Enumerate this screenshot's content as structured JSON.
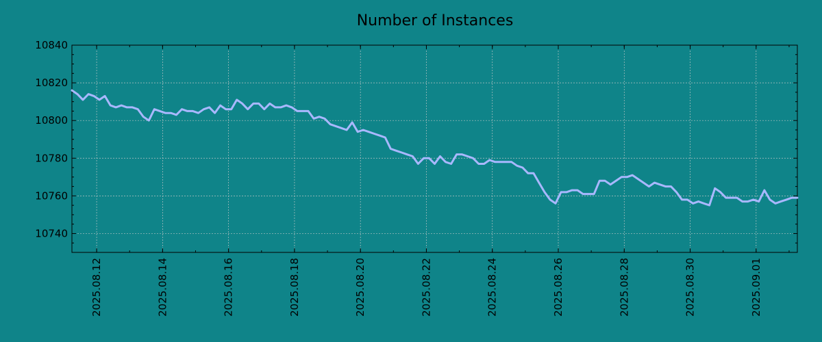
{
  "background_color": "#0f8489",
  "chart_data": {
    "type": "line",
    "title": "Number of Instances",
    "xlabel": "",
    "ylabel": "",
    "ylim": [
      10730,
      10840
    ],
    "xlim": [
      "2025-08-11 06:00",
      "2025-09-02 06:00"
    ],
    "y_ticks": [
      10740,
      10760,
      10780,
      10800,
      10820,
      10840
    ],
    "x_ticks": [
      "2025.08.12",
      "2025.08.14",
      "2025.08.16",
      "2025.08.18",
      "2025.08.20",
      "2025.08.22",
      "2025.08.24",
      "2025.08.26",
      "2025.08.28",
      "2025.08.30",
      "2025.09.01"
    ],
    "x_tick_dates": [
      "2025-08-12",
      "2025-08-14",
      "2025-08-16",
      "2025-08-18",
      "2025-08-20",
      "2025-08-22",
      "2025-08-24",
      "2025-08-26",
      "2025-08-28",
      "2025-08-30",
      "2025-09-01"
    ],
    "grid": true,
    "line_color": "#a9b8ff",
    "series": [
      {
        "x": [
          "2025-08-11 06:00",
          "2025-08-11 10:00",
          "2025-08-11 14:00",
          "2025-08-11 18:00",
          "2025-08-11 22:00",
          "2025-08-12 02:00",
          "2025-08-12 06:00",
          "2025-08-12 10:00",
          "2025-08-12 14:00",
          "2025-08-12 18:00",
          "2025-08-12 22:00",
          "2025-08-13 02:00",
          "2025-08-13 06:00",
          "2025-08-13 10:00",
          "2025-08-13 14:00",
          "2025-08-13 18:00",
          "2025-08-13 22:00",
          "2025-08-14 02:00",
          "2025-08-14 06:00",
          "2025-08-14 10:00",
          "2025-08-14 14:00",
          "2025-08-14 18:00",
          "2025-08-14 22:00",
          "2025-08-15 02:00",
          "2025-08-15 06:00",
          "2025-08-15 10:00",
          "2025-08-15 14:00",
          "2025-08-15 18:00",
          "2025-08-15 22:00",
          "2025-08-16 02:00",
          "2025-08-16 06:00",
          "2025-08-16 10:00",
          "2025-08-16 14:00",
          "2025-08-16 18:00",
          "2025-08-16 22:00",
          "2025-08-17 02:00",
          "2025-08-17 06:00",
          "2025-08-17 10:00",
          "2025-08-17 14:00",
          "2025-08-17 18:00",
          "2025-08-17 22:00",
          "2025-08-18 02:00",
          "2025-08-18 06:00",
          "2025-08-18 10:00",
          "2025-08-18 14:00",
          "2025-08-18 18:00",
          "2025-08-18 22:00",
          "2025-08-19 02:00",
          "2025-08-19 06:00",
          "2025-08-19 10:00",
          "2025-08-19 14:00",
          "2025-08-19 18:00",
          "2025-08-19 22:00",
          "2025-08-20 02:00",
          "2025-08-20 06:00",
          "2025-08-20 10:00",
          "2025-08-20 14:00",
          "2025-08-20 18:00",
          "2025-08-20 22:00",
          "2025-08-21 02:00",
          "2025-08-21 06:00",
          "2025-08-21 10:00",
          "2025-08-21 14:00",
          "2025-08-21 18:00",
          "2025-08-21 22:00",
          "2025-08-22 02:00",
          "2025-08-22 06:00",
          "2025-08-22 10:00",
          "2025-08-22 14:00",
          "2025-08-22 18:00",
          "2025-08-22 22:00",
          "2025-08-23 02:00",
          "2025-08-23 06:00",
          "2025-08-23 10:00",
          "2025-08-23 14:00",
          "2025-08-23 18:00",
          "2025-08-23 22:00",
          "2025-08-24 02:00",
          "2025-08-24 06:00",
          "2025-08-24 10:00",
          "2025-08-24 14:00",
          "2025-08-24 18:00",
          "2025-08-24 22:00",
          "2025-08-25 02:00",
          "2025-08-25 06:00",
          "2025-08-25 10:00",
          "2025-08-25 14:00",
          "2025-08-25 18:00",
          "2025-08-25 22:00",
          "2025-08-26 02:00",
          "2025-08-26 06:00",
          "2025-08-26 10:00",
          "2025-08-26 14:00",
          "2025-08-26 18:00",
          "2025-08-26 22:00",
          "2025-08-27 02:00",
          "2025-08-27 06:00",
          "2025-08-27 10:00",
          "2025-08-27 14:00",
          "2025-08-27 18:00",
          "2025-08-27 22:00",
          "2025-08-28 02:00",
          "2025-08-28 06:00",
          "2025-08-28 10:00",
          "2025-08-28 14:00",
          "2025-08-28 18:00",
          "2025-08-28 22:00",
          "2025-08-29 02:00",
          "2025-08-29 06:00",
          "2025-08-29 10:00",
          "2025-08-29 14:00",
          "2025-08-29 18:00",
          "2025-08-29 22:00",
          "2025-08-30 02:00",
          "2025-08-30 06:00",
          "2025-08-30 10:00",
          "2025-08-30 14:00",
          "2025-08-30 18:00",
          "2025-08-30 22:00",
          "2025-08-31 02:00",
          "2025-08-31 06:00",
          "2025-08-31 10:00",
          "2025-08-31 14:00",
          "2025-08-31 18:00",
          "2025-08-31 22:00",
          "2025-09-01 02:00",
          "2025-09-01 06:00",
          "2025-09-01 10:00",
          "2025-09-01 14:00",
          "2025-09-01 18:00",
          "2025-09-01 22:00",
          "2025-09-02 02:00",
          "2025-09-02 06:00"
        ],
        "values": [
          10816,
          10814,
          10811,
          10814,
          10813,
          10811,
          10813,
          10808,
          10807,
          10808,
          10807,
          10807,
          10806,
          10802,
          10800,
          10806,
          10805,
          10804,
          10804,
          10803,
          10806,
          10805,
          10805,
          10804,
          10806,
          10807,
          10804,
          10808,
          10806,
          10806,
          10811,
          10809,
          10806,
          10809,
          10809,
          10806,
          10809,
          10807,
          10807,
          10808,
          10807,
          10805,
          10805,
          10805,
          10801,
          10802,
          10801,
          10798,
          10797,
          10796,
          10795,
          10799,
          10794,
          10795,
          10794,
          10793,
          10792,
          10791,
          10785,
          10784,
          10783,
          10782,
          10781,
          10777,
          10780,
          10780,
          10777,
          10781,
          10778,
          10777,
          10782,
          10782,
          10781,
          10780,
          10777,
          10777,
          10779,
          10778,
          10778,
          10778,
          10778,
          10776,
          10775,
          10772,
          10772,
          10767,
          10762,
          10758,
          10756,
          10762,
          10762,
          10763,
          10763,
          10761,
          10761,
          10761,
          10768,
          10768,
          10766,
          10768,
          10770,
          10770,
          10771,
          10769,
          10767,
          10765,
          10767,
          10766,
          10765,
          10765,
          10762,
          10758,
          10758,
          10756,
          10757,
          10756,
          10755,
          10764,
          10762,
          10759,
          10759,
          10759,
          10757,
          10757,
          10758,
          10757,
          10763,
          10758,
          10756,
          10757,
          10758,
          10759,
          10759
        ]
      }
    ]
  }
}
